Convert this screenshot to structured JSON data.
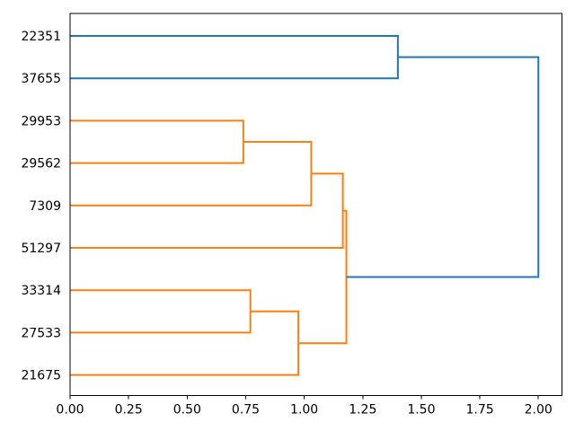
{
  "chart_data": {
    "type": "dendrogram",
    "orientation": "horizontal-root-right",
    "title": "",
    "xlabel": "",
    "ylabel": "",
    "leaves": [
      "22351",
      "37655",
      "29953",
      "29562",
      "7309",
      "51297",
      "33314",
      "27533",
      "21675"
    ],
    "links": [
      {
        "id": "M0",
        "a": "L0",
        "b": "L1",
        "distance": 1.4,
        "color": "blue"
      },
      {
        "id": "M1",
        "a": "L2",
        "b": "L3",
        "distance": 0.74,
        "color": "orange"
      },
      {
        "id": "M2",
        "a": "M1",
        "b": "L4",
        "distance": 1.03,
        "color": "orange"
      },
      {
        "id": "M3",
        "a": "M2",
        "b": "L5",
        "distance": 1.165,
        "color": "orange"
      },
      {
        "id": "M4",
        "a": "L6",
        "b": "L7",
        "distance": 0.77,
        "color": "orange"
      },
      {
        "id": "M5",
        "a": "M4",
        "b": "L8",
        "distance": 0.975,
        "color": "orange"
      },
      {
        "id": "M6",
        "a": "M3",
        "b": "M5",
        "distance": 1.18,
        "color": "orange"
      },
      {
        "id": "M7",
        "a": "M0",
        "b": "M6",
        "distance": 2.0,
        "color": "blue"
      }
    ],
    "x_axis": {
      "range": [
        0,
        2.1
      ],
      "ticks": [
        {
          "value": 0.0,
          "label": "0.00"
        },
        {
          "value": 0.25,
          "label": "0.25"
        },
        {
          "value": 0.5,
          "label": "0.50"
        },
        {
          "value": 0.75,
          "label": "0.75"
        },
        {
          "value": 1.0,
          "label": "1.00"
        },
        {
          "value": 1.25,
          "label": "1.25"
        },
        {
          "value": 1.5,
          "label": "1.50"
        },
        {
          "value": 1.75,
          "label": "1.75"
        },
        {
          "value": 2.0,
          "label": "2.00"
        }
      ]
    },
    "legend": null,
    "grid": false,
    "colors": {
      "blue": "#1f77b4",
      "orange": "#ff7f0e",
      "spine": "#000000",
      "background": "#ffffff"
    }
  }
}
